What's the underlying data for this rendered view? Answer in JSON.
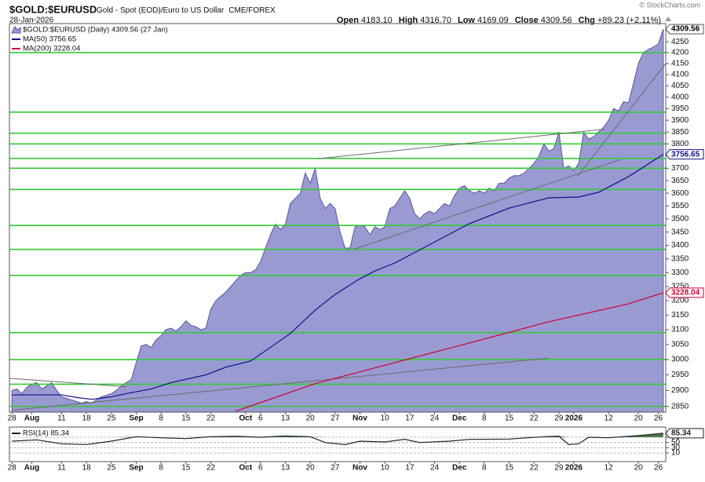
{
  "header": {
    "symbol": "$GOLD:$EURUSD",
    "description": "Gold - Spot (EOD)/Euro to US Dollar",
    "exchange": "CME/FOREX",
    "date": "28-Jan-2026",
    "copyright": "© StockCharts.com",
    "quote": [
      {
        "label": "Open",
        "value": "4183.10"
      },
      {
        "label": "High",
        "value": "4316.70"
      },
      {
        "label": "Low",
        "value": "4169.09"
      },
      {
        "label": "Close",
        "value": "4309.56"
      },
      {
        "label": "Chg",
        "value": "+89.23 (+2.11%)"
      }
    ]
  },
  "chart_data": [
    {
      "type": "area",
      "log_scale": true,
      "ylim": [
        2832,
        4336
      ],
      "xlim": [
        -0.5,
        131.5
      ],
      "yticks": [
        2850,
        2900,
        2950,
        3000,
        3050,
        3100,
        3150,
        3200,
        3250,
        3300,
        3350,
        3400,
        3450,
        3500,
        3550,
        3600,
        3650,
        3700,
        3800,
        3850,
        3900,
        3950,
        4000,
        4050,
        4100,
        4150,
        4200,
        4250
      ],
      "xticks": [
        {
          "value": 0,
          "label": "28"
        },
        {
          "value": 4,
          "label": "Aug"
        },
        {
          "value": 10,
          "label": "11"
        },
        {
          "value": 15,
          "label": "18"
        },
        {
          "value": 20,
          "label": "25"
        },
        {
          "value": 25,
          "label": "Sep"
        },
        {
          "value": 30,
          "label": "8"
        },
        {
          "value": 35,
          "label": "15"
        },
        {
          "value": 40,
          "label": "22"
        },
        {
          "value": 47,
          "label": "Oct"
        },
        {
          "value": 50,
          "label": "6"
        },
        {
          "value": 55,
          "label": "13"
        },
        {
          "value": 60,
          "label": "20"
        },
        {
          "value": 65,
          "label": "27"
        },
        {
          "value": 70,
          "label": "Nov"
        },
        {
          "value": 75,
          "label": "10"
        },
        {
          "value": 80,
          "label": "17"
        },
        {
          "value": 85,
          "label": "24"
        },
        {
          "value": 90,
          "label": "Dec"
        },
        {
          "value": 95,
          "label": "8"
        },
        {
          "value": 100,
          "label": "15"
        },
        {
          "value": 105,
          "label": "22"
        },
        {
          "value": 110,
          "label": "29"
        },
        {
          "value": 113,
          "label": "2026"
        },
        {
          "value": 120,
          "label": "12"
        },
        {
          "value": 126,
          "label": "20"
        },
        {
          "value": 130,
          "label": "26"
        }
      ],
      "series": [
        {
          "name": "$GOLD:$EURUSD (Daily) 4309.56 (27 Jan)",
          "type": "area",
          "color": "#9a9ad3",
          "values": [
            2900,
            2905,
            2890,
            2910,
            2920,
            2925,
            2905,
            2915,
            2925,
            2900,
            2880,
            2875,
            2870,
            2865,
            2860,
            2865,
            2860,
            2870,
            2880,
            2885,
            2890,
            2900,
            2915,
            2925,
            2935,
            2990,
            3045,
            3050,
            3040,
            3065,
            3080,
            3100,
            3105,
            3095,
            3110,
            3130,
            3115,
            3110,
            3100,
            3105,
            3170,
            3200,
            3215,
            3230,
            3250,
            3270,
            3290,
            3300,
            3300,
            3310,
            3340,
            3390,
            3440,
            3480,
            3460,
            3480,
            3560,
            3580,
            3600,
            3680,
            3640,
            3700,
            3580,
            3540,
            3560,
            3540,
            3450,
            3390,
            3390,
            3470,
            3475,
            3470,
            3440,
            3470,
            3460,
            3470,
            3540,
            3550,
            3580,
            3610,
            3580,
            3520,
            3500,
            3520,
            3530,
            3520,
            3540,
            3560,
            3550,
            3590,
            3620,
            3630,
            3610,
            3600,
            3610,
            3600,
            3620,
            3610,
            3640,
            3640,
            3660,
            3670,
            3670,
            3680,
            3700,
            3720,
            3750,
            3800,
            3770,
            3780,
            3850,
            3700,
            3710,
            3690,
            3720,
            3850,
            3820,
            3830,
            3850,
            3870,
            3900,
            3950,
            3940,
            3980,
            3975,
            4060,
            4150,
            4200,
            4215,
            4225,
            4240,
            4309.56
          ]
        },
        {
          "name": "MA(50) 3756.65",
          "type": "line",
          "color": "#10108a",
          "x": [
            0,
            10,
            13,
            16,
            20,
            23,
            28,
            32,
            39,
            43,
            48,
            53,
            56,
            61,
            65,
            70,
            73,
            77,
            83,
            92,
            100,
            108,
            114,
            118,
            124,
            131
          ],
          "values": [
            2886,
            2886,
            2878,
            2872,
            2880,
            2890,
            2905,
            2925,
            2950,
            2975,
            2995,
            3052,
            3087,
            3167,
            3222,
            3278,
            3306,
            3335,
            3393,
            3482,
            3542,
            3582,
            3585,
            3604,
            3666,
            3756.65
          ]
        },
        {
          "name": "MA(200) 3228.04",
          "type": "line",
          "color": "#cc0033",
          "x": [
            45,
            61,
            77,
            92,
            108,
            124,
            131
          ],
          "values": [
            2835,
            2922,
            2990,
            3055,
            3127,
            3189,
            3228.04
          ]
        }
      ],
      "hlines": {
        "color": "#33cc33",
        "values": [
          4200,
          3935,
          3845,
          3800,
          3740,
          3700,
          3615,
          3475,
          3385,
          3290,
          3090,
          3000,
          2920,
          2850
        ]
      },
      "lines": {
        "color": "#6a6a6a",
        "items": [
          {
            "x": [
              -0.5,
              23
            ],
            "values": [
              2939,
              2912
            ]
          },
          {
            "x": [
              0,
              108
            ],
            "values": [
              2838,
              3005
            ]
          },
          {
            "x": [
              68.7,
              122.3
            ],
            "values": [
              3385,
              3735
            ]
          },
          {
            "x": [
              61.6,
              119.2
            ],
            "values": [
              3739,
              3862
            ]
          },
          {
            "x": [
              113.7,
              131.5
            ],
            "values": [
              3666,
              4150
            ]
          }
        ]
      }
    },
    {
      "type": "line",
      "log_scale": false,
      "ylim": [
        -23,
        109
      ],
      "xlim": [
        -0.5,
        131.5
      ],
      "yticks": [
        10,
        30,
        50,
        70
      ],
      "grid": true,
      "shade_above": 70,
      "shade_color": "#4f7a4f",
      "series": [
        {
          "name": "RSI(14) 85.34",
          "type": "line",
          "color": "#222222",
          "x": [
            0,
            5,
            10,
            15,
            20,
            25,
            30,
            35,
            40,
            45,
            50,
            55,
            60,
            63,
            67,
            70,
            75,
            79,
            82,
            88,
            92,
            100,
            107,
            110,
            112,
            114,
            116,
            120,
            125,
            128,
            131
          ],
          "values": [
            55,
            60,
            45,
            42,
            55,
            72,
            68,
            65,
            72,
            74,
            70,
            75,
            72,
            50,
            42,
            55,
            52,
            62,
            50,
            55,
            62,
            63,
            72,
            74,
            42,
            45,
            70,
            68,
            75,
            80,
            85.34
          ]
        }
      ]
    }
  ]
}
